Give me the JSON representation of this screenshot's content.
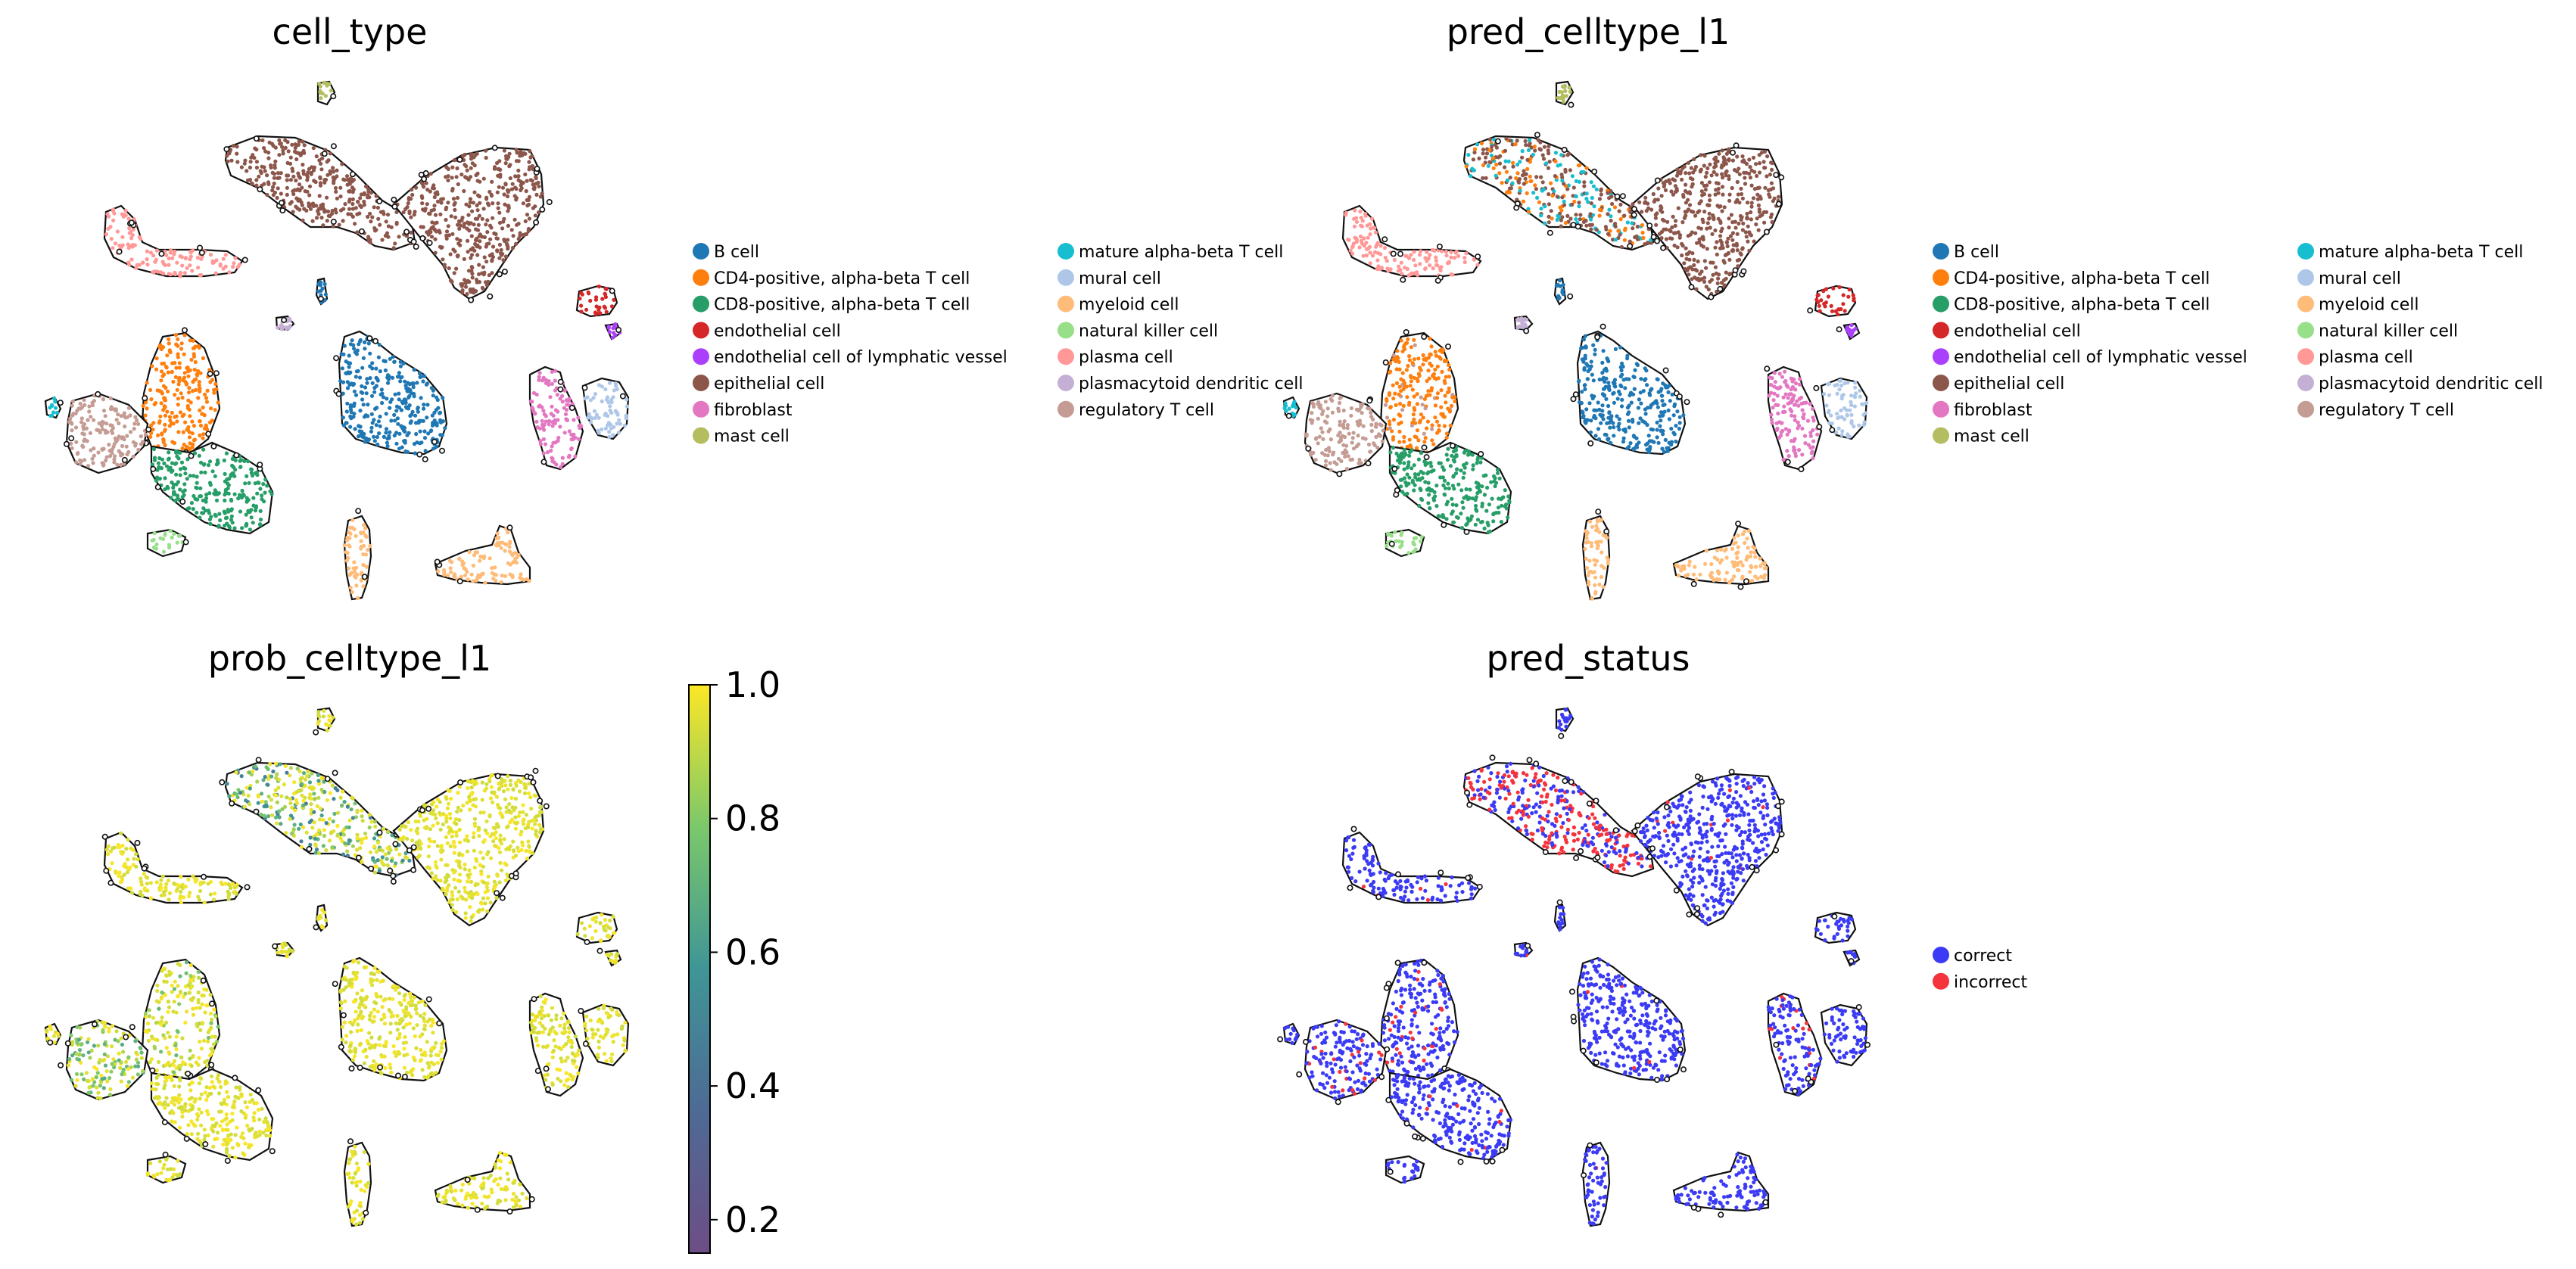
{
  "chart_data": [
    {
      "type": "scatter",
      "title": "cell_type",
      "legend_position": "right",
      "legend": [
        {
          "label": "B cell",
          "color": "#1f77b4"
        },
        {
          "label": "CD4-positive, alpha-beta T cell",
          "color": "#ff7f0e"
        },
        {
          "label": "CD8-positive, alpha-beta T cell",
          "color": "#279e68"
        },
        {
          "label": "endothelial cell",
          "color": "#d62728"
        },
        {
          "label": "endothelial cell of lymphatic vessel",
          "color": "#aa40fc"
        },
        {
          "label": "epithelial cell",
          "color": "#8c564b"
        },
        {
          "label": "fibroblast",
          "color": "#e377c2"
        },
        {
          "label": "mast cell",
          "color": "#b5bd61"
        },
        {
          "label": "mature alpha-beta T cell",
          "color": "#17becf"
        },
        {
          "label": "mural cell",
          "color": "#aec7e8"
        },
        {
          "label": "myeloid cell",
          "color": "#ffbb78"
        },
        {
          "label": "natural killer cell",
          "color": "#98df8a"
        },
        {
          "label": "plasma cell",
          "color": "#ff9896"
        },
        {
          "label": "plasmacytoid dendritic cell",
          "color": "#c5b0d5"
        },
        {
          "label": "regulatory T cell",
          "color": "#c49c94"
        }
      ]
    },
    {
      "type": "scatter",
      "title": "pred_celltype_l1",
      "legend_position": "right",
      "legend": [
        {
          "label": "B cell",
          "color": "#1f77b4"
        },
        {
          "label": "CD4-positive, alpha-beta T cell",
          "color": "#ff7f0e"
        },
        {
          "label": "CD8-positive, alpha-beta T cell",
          "color": "#279e68"
        },
        {
          "label": "endothelial cell",
          "color": "#d62728"
        },
        {
          "label": "endothelial cell of lymphatic vessel",
          "color": "#aa40fc"
        },
        {
          "label": "epithelial cell",
          "color": "#8c564b"
        },
        {
          "label": "fibroblast",
          "color": "#e377c2"
        },
        {
          "label": "mast cell",
          "color": "#b5bd61"
        },
        {
          "label": "mature alpha-beta T cell",
          "color": "#17becf"
        },
        {
          "label": "mural cell",
          "color": "#aec7e8"
        },
        {
          "label": "myeloid cell",
          "color": "#ffbb78"
        },
        {
          "label": "natural killer cell",
          "color": "#98df8a"
        },
        {
          "label": "plasma cell",
          "color": "#ff9896"
        },
        {
          "label": "plasmacytoid dendritic cell",
          "color": "#c5b0d5"
        },
        {
          "label": "regulatory T cell",
          "color": "#c49c94"
        }
      ]
    },
    {
      "type": "scatter",
      "title": "prob_celltype_l1",
      "legend_position": "right",
      "colorbar": {
        "range": [
          0.15,
          1.0
        ],
        "ticks": [
          "0.2",
          "0.4",
          "0.6",
          "0.8",
          "1.0"
        ],
        "colormap": "viridis"
      }
    },
    {
      "type": "scatter",
      "title": "pred_status",
      "legend_position": "right",
      "legend": [
        {
          "label": "correct",
          "color": "#3b3bf5"
        },
        {
          "label": "incorrect",
          "color": "#f5333c"
        }
      ]
    }
  ]
}
